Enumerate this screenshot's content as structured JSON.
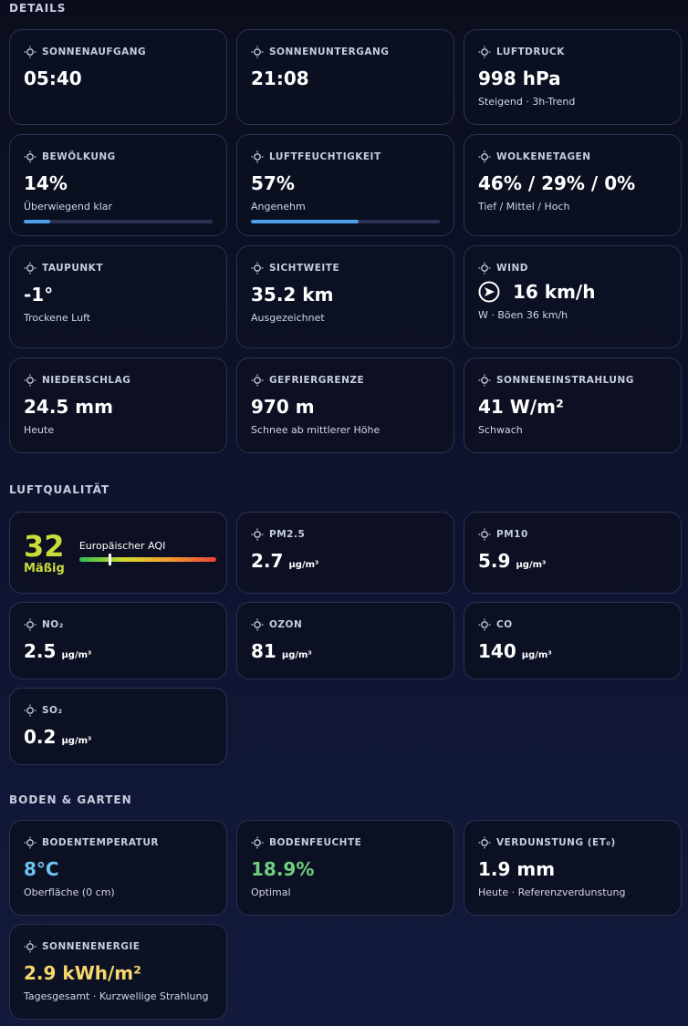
{
  "sections": [
    {
      "title": "DETAILS",
      "cards": [
        {
          "label": "SONNENAUFGANG",
          "value": "05:40"
        },
        {
          "label": "SONNENUNTERGANG",
          "value": "21:08"
        },
        {
          "label": "LUFTDRUCK",
          "value": "998 hPa",
          "sub": "Steigend · 3h-Trend"
        },
        {
          "label": "BEWÖLKUNG",
          "value": "14%",
          "sub": "Überwiegend klar",
          "bar": {
            "value": 14,
            "max": 100
          }
        },
        {
          "label": "LUFTFEUCHTIGKEIT",
          "value": "57%",
          "sub": "Angenehm",
          "bar": {
            "value": 57,
            "max": 100
          }
        },
        {
          "label": "WOLKENETAGEN",
          "value": "46% / 29% / 0%",
          "sub": "Tief / Mittel / Hoch"
        },
        {
          "label": "TAUPUNKT",
          "value": "-1°",
          "sub": "Trockene Luft"
        },
        {
          "label": "SICHTWEITE",
          "value": "35.2 km",
          "sub": "Ausgezeichnet"
        },
        {
          "label": "WIND",
          "value": "16 km/h",
          "sub": "W · Böen 36 km/h",
          "compass": true
        },
        {
          "label": "NIEDERSCHLAG",
          "value": "24.5 mm",
          "sub": "Heute"
        },
        {
          "label": "GEFRIERGRENZE",
          "value": "970 m",
          "sub": "Schnee ab mittlerer Höhe"
        },
        {
          "label": "SONNENEINSTRAHLUNG",
          "value": "41 W/m²",
          "sub": "Schwach"
        }
      ]
    },
    {
      "title": "LUFTQUALITÄT",
      "aqi": {
        "value": "32",
        "status": "Mäßig",
        "label": "Europäischer AQI",
        "gauge": {
          "value": 32,
          "max": 150
        }
      },
      "cards": [
        {
          "label": "PM2.5",
          "value": "2.7",
          "unit": "µg/m³"
        },
        {
          "label": "PM10",
          "value": "5.9",
          "unit": "µg/m³"
        },
        {
          "label": "NO₂",
          "value": "2.5",
          "unit": "µg/m³"
        },
        {
          "label": "OZON",
          "value": "81",
          "unit": "µg/m³"
        },
        {
          "label": "CO",
          "value": "140",
          "unit": "µg/m³"
        },
        {
          "label": "SO₂",
          "value": "0.2",
          "unit": "µg/m³"
        }
      ]
    },
    {
      "title": "BODEN & GARTEN",
      "cards": [
        {
          "label": "BODENTEMPERATUR",
          "value": "8°C",
          "sub": "Oberfläche (0 cm)",
          "color": "#6cc4f2"
        },
        {
          "label": "BODENFEUCHTE",
          "value": "18.9%",
          "sub": "Optimal",
          "color": "#6fcf7f"
        },
        {
          "label": "VERDUNSTUNG (ET₀)",
          "value": "1.9 mm",
          "sub": "Heute · Referenzverdunstung"
        },
        {
          "label": "SONNENENERGIE",
          "value": "2.9 kWh/m²",
          "sub": "Tagesgesamt · Kurzwellige Strahlung",
          "color": "#f6d86c"
        }
      ]
    }
  ]
}
